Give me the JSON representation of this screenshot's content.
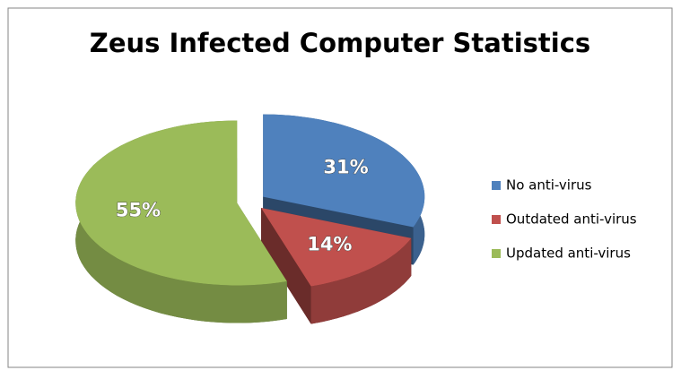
{
  "chart_data": {
    "type": "pie",
    "title": "Zeus Infected Computer Statistics",
    "categories": [
      "No anti-virus",
      "Outdated anti-virus",
      "Updated anti-virus"
    ],
    "values": [
      31,
      14,
      55
    ],
    "value_labels": [
      "31%",
      "14%",
      "55%"
    ],
    "colors": [
      "#4f81bd",
      "#c0504d",
      "#9bbb59"
    ],
    "legend": "right"
  }
}
